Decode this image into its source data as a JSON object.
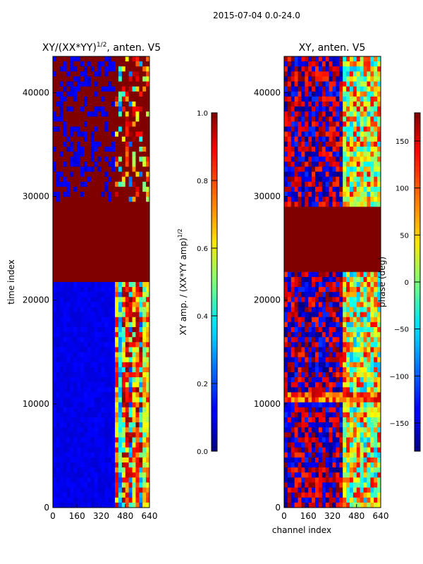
{
  "suptitle": "2015-07-04 0.0-24.0",
  "chart_data": [
    {
      "type": "heatmap",
      "title_main": "XY/(XX*YY)",
      "title_exp": "1/2",
      "title_suffix": ", anten. V5",
      "xlabel": "",
      "ylabel": "time index",
      "xlim": [
        0,
        640
      ],
      "ylim": [
        0,
        43500
      ],
      "xticks": [
        0,
        160,
        320,
        480,
        640
      ],
      "yticks": [
        0,
        10000,
        20000,
        30000,
        40000
      ],
      "saturated_band": [
        21800,
        29400
      ],
      "colorbar": {
        "label_main": "XY amp. / (XX*YY amp)",
        "label_exp": "1/2",
        "range": [
          0,
          1
        ],
        "ticks": [
          "0.0",
          "0.2",
          "0.4",
          "0.6",
          "0.8",
          "1.0"
        ],
        "tick_values": [
          0,
          0.2,
          0.4,
          0.6,
          0.8,
          1.0
        ]
      }
    },
    {
      "type": "heatmap",
      "title_main": "XY, anten. V5",
      "xlabel": "channel index",
      "ylabel": "",
      "xlim": [
        0,
        640
      ],
      "ylim": [
        0,
        43500
      ],
      "xticks": [
        0,
        160,
        320,
        480,
        640
      ],
      "yticks": [
        0,
        10000,
        20000,
        30000,
        40000
      ],
      "saturated_band": [
        22500,
        29000
      ],
      "colorbar": {
        "label_main": "phase (deg)",
        "range": [
          -180,
          180
        ],
        "ticks": [
          "−150",
          "−100",
          "−50",
          "0",
          "50",
          "100",
          "150"
        ],
        "tick_values": [
          -150,
          -100,
          -50,
          0,
          50,
          100,
          150
        ]
      }
    }
  ]
}
